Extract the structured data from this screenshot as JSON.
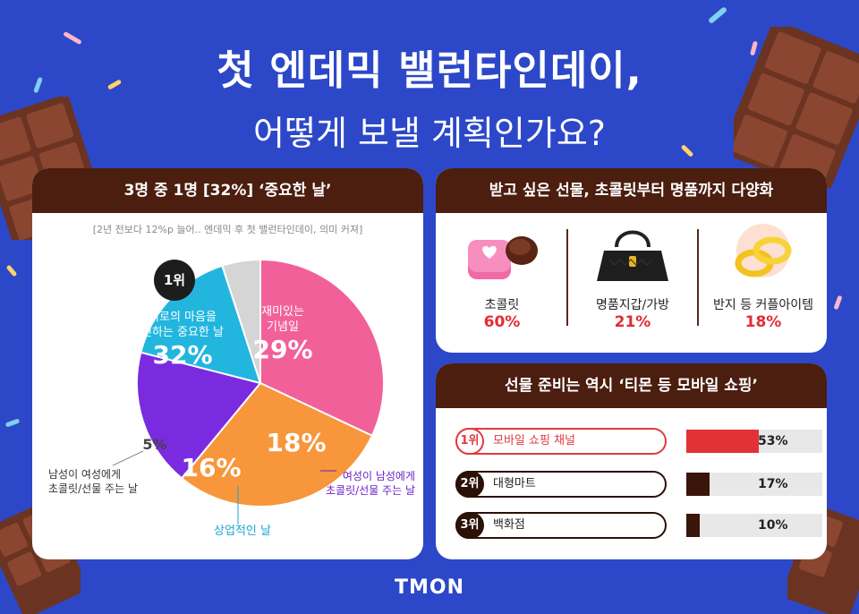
{
  "header": {
    "title_line1": "첫 엔데믹 밸런타인데이,",
    "title_line2": "어떻게 보낼 계획인가요?"
  },
  "left_panel": {
    "heading": "3명 중 1명 [32%] ‘중요한 날’",
    "note": "[2년 전보다 12%p 늘어.. 엔데믹 후 첫 밸런타인데이, 의미 커져]",
    "rank_badge": "1위",
    "chart_data": {
      "type": "pie",
      "slices": [
        {
          "label": "서로의 마음을 전하는 중요한 날",
          "value": 32,
          "display": "32%",
          "color": "#f2609a"
        },
        {
          "label": "재미있는 기념일",
          "value": 29,
          "display": "29%",
          "color": "#f7963a"
        },
        {
          "label": "여성이 남성에게 초콜릿/선물 주는 날",
          "value": 18,
          "display": "18%",
          "color": "#7a2be0"
        },
        {
          "label": "상업적인 날",
          "value": 16,
          "display": "16%",
          "color": "#22b6df"
        },
        {
          "label": "남성이 여성에게 초콜릿/선물 주는 날",
          "value": 5,
          "display": "5%",
          "color": "#d5d5d5"
        }
      ],
      "labels": {
        "s1_line1": "서로의 마음을",
        "s1_line2": "전하는 중요한 날",
        "s2_line1": "재미있는",
        "s2_line2": "기념일",
        "s3_line1": "여성이 남성에게",
        "s3_line2": "초콜릿/선물 주는 날",
        "s4": "상업적인 날",
        "s5_line1": "남성이 여성에게",
        "s5_line2": "초콜릿/선물 주는 날"
      }
    }
  },
  "gift_panel": {
    "heading": "받고 싶은 선물, 초콜릿부터 명품까지 다양화",
    "items": [
      {
        "label": "초콜릿",
        "percent": "60%",
        "icon": "chocolate-box-icon"
      },
      {
        "label": "명품지갑/가방",
        "percent": "21%",
        "icon": "handbag-icon"
      },
      {
        "label": "반지 등 커플아이템",
        "percent": "18%",
        "icon": "rings-icon"
      }
    ]
  },
  "mobile_panel": {
    "heading": "선물 준비는 역시 ‘티몬 등 모바일 쇼핑’",
    "rows": [
      {
        "rank": "1위",
        "name": "모바일 쇼핑 채널",
        "value": 53,
        "display": "53%"
      },
      {
        "rank": "2위",
        "name": "대형마트",
        "value": 17,
        "display": "17%"
      },
      {
        "rank": "3위",
        "name": "백화점",
        "value": 10,
        "display": "10%"
      }
    ]
  },
  "footer": {
    "logo": "TMON"
  },
  "colors": {
    "background": "#2c48c8",
    "brown": "#4b1e0f",
    "red": "#e32b34"
  }
}
